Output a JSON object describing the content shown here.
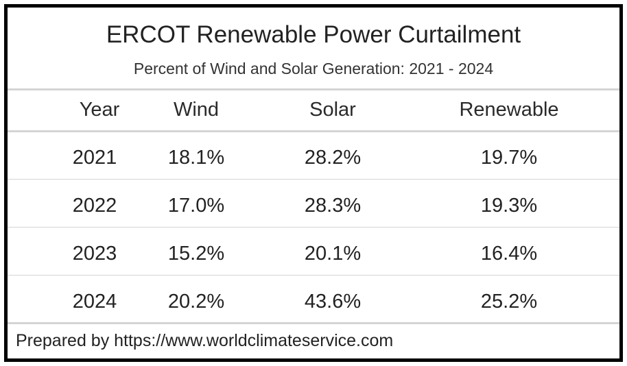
{
  "chart_data": {
    "type": "table",
    "title": "ERCOT Renewable Power Curtailment",
    "subtitle": "Percent of Wind and Solar Generation: 2021 - 2024",
    "columns": [
      "Year",
      "Wind",
      "Solar",
      "Renewable"
    ],
    "rows": [
      [
        "2021",
        "18.1%",
        "28.2%",
        "19.7%"
      ],
      [
        "2022",
        "17.0%",
        "28.3%",
        "19.3%"
      ],
      [
        "2023",
        "15.2%",
        "20.1%",
        "16.4%"
      ],
      [
        "2024",
        "20.2%",
        "43.6%",
        "25.2%"
      ]
    ],
    "footer": "Prepared by https://www.worldclimateservice.com"
  }
}
